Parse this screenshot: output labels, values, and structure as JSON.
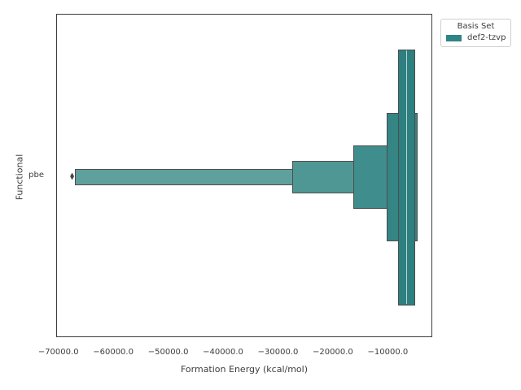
{
  "figure": {
    "x_axis_label": "Formation Energy (kcal/mol)",
    "y_axis_label": "Functional",
    "category_label": "pbe"
  },
  "legend": {
    "title": "Basis Set",
    "entries": [
      {
        "label": "def2-tzvp",
        "color": "#2f8486"
      }
    ]
  },
  "colors": {
    "box_edge": "#4d4d4d",
    "median_line": "#b9d8d6",
    "outlier": "#474747",
    "spine": "#3c3c3c",
    "text": "#3d3d3d"
  },
  "chart_data": {
    "type": "boxen",
    "orientation": "horizontal",
    "title": "",
    "xlabel": "Formation Energy (kcal/mol)",
    "ylabel": "Functional",
    "category": "pbe",
    "series_name": "def2-tzvp",
    "xlim": [
      -70400,
      -1900
    ],
    "grid": false,
    "legend_position": "upper right, outside axes",
    "x_ticks": [
      -70000,
      -60000,
      -50000,
      -40000,
      -30000,
      -20000,
      -10000
    ],
    "x_tick_labels": [
      "−70000.0",
      "−60000.0",
      "−50000.0",
      "−40000.0",
      "−30000.0",
      "−20000.0",
      "−10000.0"
    ],
    "median": -6550,
    "levels": [
      {
        "depth": 1,
        "lo": -67000,
        "hi": -4500,
        "color": "#5fa09d"
      },
      {
        "depth": 2,
        "lo": -27400,
        "hi": -4550,
        "color": "#4f9794"
      },
      {
        "depth": 3,
        "lo": -16300,
        "hi": -4600,
        "color": "#3f8d8c"
      },
      {
        "depth": 4,
        "lo": -10200,
        "hi": -4600,
        "color": "#348584"
      },
      {
        "depth": 5,
        "lo": -8200,
        "hi": -5000,
        "color": "#2d7f80"
      }
    ],
    "quartiles": {
      "q1": -8200,
      "median": -6550,
      "q3": -5000
    },
    "outliers": [
      -67500
    ]
  }
}
